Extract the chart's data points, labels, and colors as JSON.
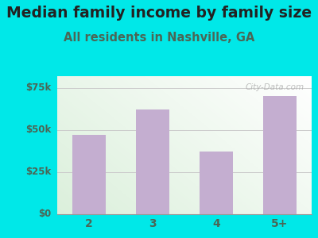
{
  "title": "Median family income by family size",
  "subtitle": "All residents in Nashville, GA",
  "categories": [
    "2",
    "3",
    "4",
    "5+"
  ],
  "values": [
    47000,
    62000,
    37000,
    70000
  ],
  "bar_color": "#c4aed0",
  "background_color": "#00e8e8",
  "yticks": [
    0,
    25000,
    50000,
    75000
  ],
  "ytick_labels": [
    "$0",
    "$25k",
    "$50k",
    "$75k"
  ],
  "ylim": [
    0,
    82000
  ],
  "title_fontsize": 13.5,
  "subtitle_fontsize": 10.5,
  "tick_color": "#4a6655",
  "label_color": "#555555",
  "watermark": "City-Data.com",
  "grid_color": "#cccccc"
}
